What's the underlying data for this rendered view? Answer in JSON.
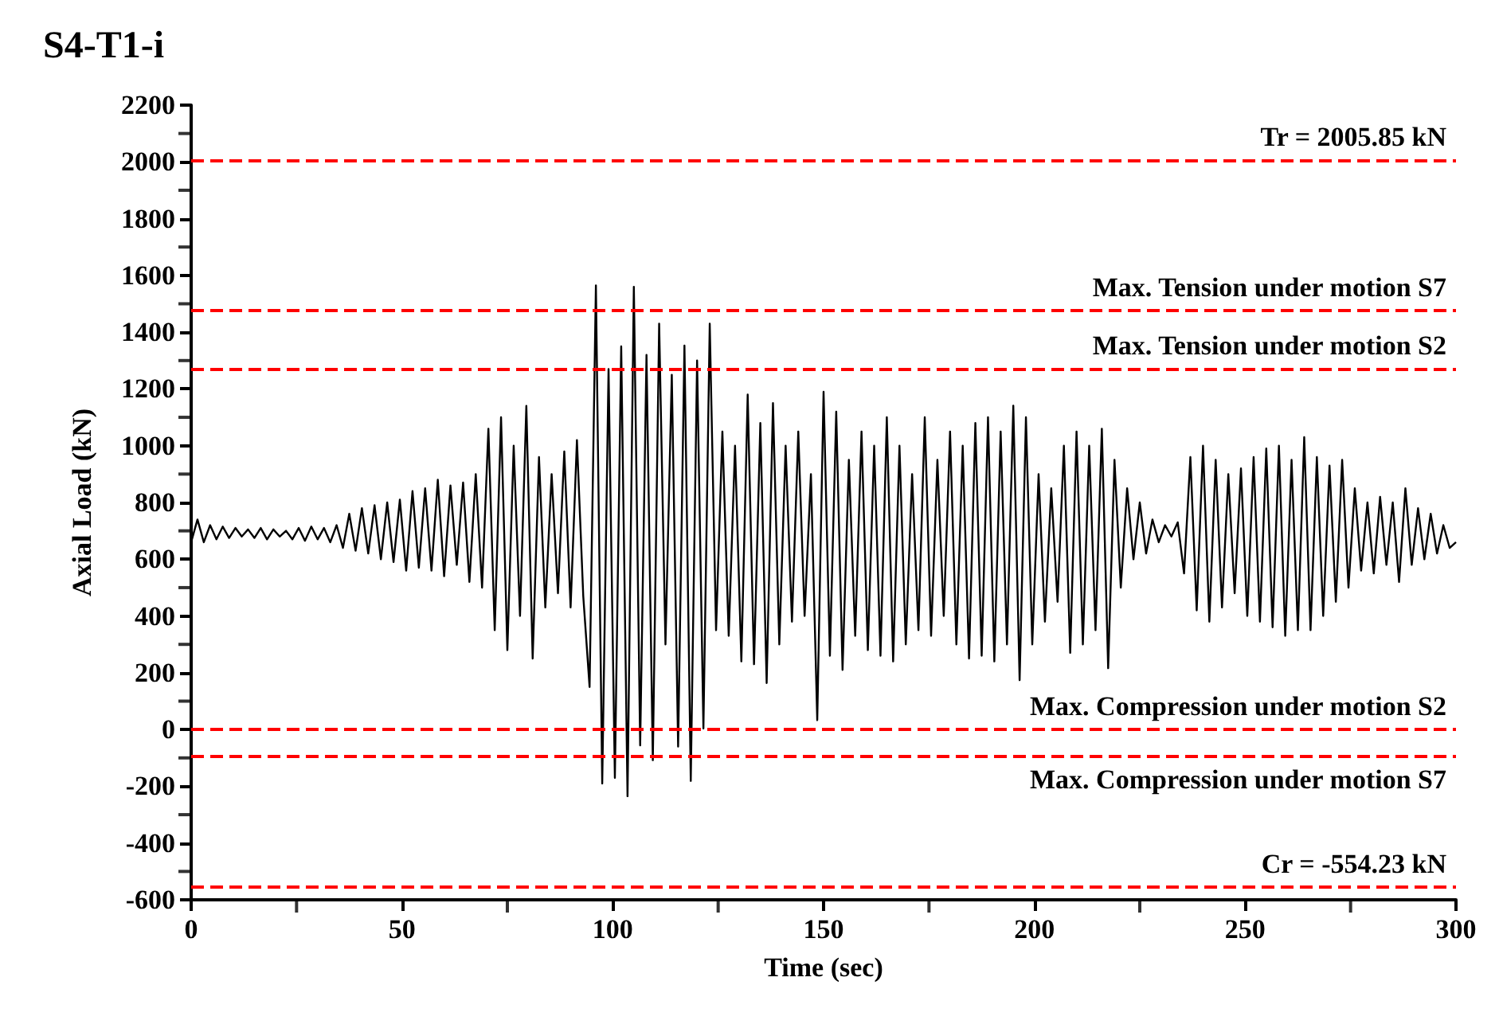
{
  "chart_data": {
    "type": "line",
    "title": "S4-T1-i",
    "xlabel": "Time (sec)",
    "ylabel": "Axial Load (kN)",
    "xlim": [
      0,
      300
    ],
    "xticks": [
      0,
      {
        "value": 25,
        "label": null
      },
      50,
      {
        "value": 75,
        "label": null
      },
      100,
      {
        "value": 125,
        "label": null
      },
      150,
      {
        "value": 175,
        "label": null
      },
      200,
      {
        "value": 225,
        "label": null
      },
      250,
      {
        "value": 275,
        "label": null
      },
      300
    ],
    "ylim": [
      -600,
      2200
    ],
    "yticks": [
      -600,
      {
        "value": -500,
        "label": null
      },
      -400,
      {
        "value": -300,
        "label": null
      },
      -200,
      {
        "value": -100,
        "label": null
      },
      0,
      {
        "value": 100,
        "label": null
      },
      200,
      {
        "value": 300,
        "label": null
      },
      400,
      {
        "value": 500,
        "label": null
      },
      600,
      {
        "value": 700,
        "label": null
      },
      800,
      {
        "value": 900,
        "label": null
      },
      1000,
      {
        "value": 1100,
        "label": null
      },
      1200,
      {
        "value": 1300,
        "label": null
      },
      1400,
      {
        "value": 1500,
        "label": null
      },
      1600,
      {
        "value": 1700,
        "label": null
      },
      1800,
      {
        "value": 1900,
        "label": null
      },
      2000,
      {
        "value": 2100,
        "label": null
      },
      2200
    ],
    "grid": false,
    "marker": "none",
    "line_style": "solid",
    "x": [
      0,
      1.5,
      3,
      4.5,
      6,
      7.5,
      9,
      10.5,
      12,
      13.5,
      15,
      16.5,
      18,
      19.5,
      21,
      22.5,
      24,
      25.5,
      27,
      28.5,
      30,
      31.5,
      33,
      34.5,
      36,
      37.5,
      39,
      40.5,
      42,
      43.5,
      45,
      46.5,
      48,
      49.5,
      51,
      52.5,
      54,
      55.5,
      57,
      58.5,
      60,
      61.5,
      63,
      64.5,
      66,
      67.5,
      69,
      70.5,
      72,
      73.5,
      75,
      76.5,
      78,
      79.5,
      81,
      82.5,
      84,
      85.5,
      87,
      88.5,
      90,
      91.5,
      93,
      94.5,
      96,
      97.5,
      99,
      100.5,
      102,
      103.5,
      105,
      106.5,
      108,
      109.5,
      111,
      112.5,
      114,
      115.5,
      117,
      118.5,
      120,
      121.5,
      123,
      124.5,
      126,
      127.5,
      129,
      130.5,
      132,
      133.5,
      135,
      136.5,
      138,
      139.5,
      141,
      142.5,
      144,
      145.5,
      147,
      148.5,
      150,
      151.5,
      153,
      154.5,
      156,
      157.5,
      159,
      160.5,
      162,
      163.5,
      165,
      166.5,
      168,
      169.5,
      171,
      172.5,
      174,
      175.5,
      177,
      178.5,
      180,
      181.5,
      183,
      184.5,
      186,
      187.5,
      189,
      190.5,
      192,
      193.5,
      195,
      196.5,
      198,
      199.5,
      201,
      202.5,
      204,
      205.5,
      207,
      208.5,
      210,
      211.5,
      213,
      214.5,
      216,
      217.5,
      219,
      220.5,
      222,
      223.5,
      225,
      226.5,
      228,
      229.5,
      231,
      232.5,
      234,
      235.5,
      237,
      238.5,
      240,
      241.5,
      243,
      244.5,
      246,
      247.5,
      249,
      250.5,
      252,
      253.5,
      255,
      256.5,
      258,
      259.5,
      261,
      262.5,
      264,
      265.5,
      267,
      268.5,
      270,
      271.5,
      273,
      274.5,
      276,
      277.5,
      279,
      280.5,
      282,
      283.5,
      285,
      286.5,
      288,
      289.5,
      291,
      292.5,
      294,
      295.5,
      297,
      298.5,
      300
    ],
    "series": [
      {
        "color": "#000000",
        "values": [
          660,
          740,
          660,
          720,
          670,
          715,
          675,
          710,
          680,
          705,
          675,
          710,
          670,
          705,
          680,
          700,
          670,
          710,
          665,
          715,
          670,
          710,
          660,
          720,
          640,
          760,
          630,
          780,
          620,
          790,
          600,
          800,
          590,
          810,
          560,
          840,
          570,
          850,
          560,
          880,
          540,
          860,
          580,
          870,
          520,
          900,
          500,
          1060,
          350,
          1100,
          280,
          1000,
          400,
          1140,
          250,
          960,
          430,
          900,
          480,
          980,
          430,
          1020,
          470,
          150,
          1565,
          -190,
          1270,
          -170,
          1350,
          -235,
          1560,
          -56,
          1320,
          -108,
          1430,
          300,
          1250,
          -60,
          1353,
          -181,
          1300,
          4,
          1430,
          350,
          1050,
          330,
          1000,
          240,
          1180,
          230,
          1080,
          164,
          1150,
          300,
          1000,
          380,
          1050,
          400,
          900,
          33,
          1190,
          260,
          1120,
          210,
          950,
          330,
          1050,
          280,
          1000,
          260,
          1100,
          240,
          1000,
          300,
          900,
          350,
          1100,
          330,
          950,
          400,
          1050,
          300,
          1000,
          250,
          1080,
          260,
          1100,
          240,
          1050,
          300,
          1141,
          174,
          1100,
          300,
          900,
          380,
          850,
          450,
          1000,
          270,
          1050,
          300,
          1000,
          350,
          1060,
          216,
          950,
          500,
          850,
          600,
          800,
          620,
          740,
          660,
          720,
          680,
          730,
          550,
          960,
          420,
          1000,
          380,
          950,
          430,
          900,
          480,
          920,
          400,
          960,
          380,
          990,
          360,
          1000,
          330,
          950,
          350,
          1030,
          350,
          960,
          400,
          930,
          450,
          950,
          500,
          850,
          560,
          800,
          550,
          820,
          580,
          800,
          520,
          850,
          580,
          780,
          600,
          760,
          620,
          720,
          640,
          660
        ]
      }
    ],
    "ref_lines": [
      {
        "axis": "y",
        "value": 2005.85,
        "label": "Tr = 2005.85 kN",
        "color": "#ff0000",
        "line_style": "dashed"
      },
      {
        "axis": "y",
        "value": 1475,
        "label": "Max. Tension under motion S7",
        "color": "#ff0000",
        "line_style": "dashed"
      },
      {
        "axis": "y",
        "value": 1270,
        "label": "Max. Tension under motion S2",
        "color": "#ff0000",
        "line_style": "dashed"
      },
      {
        "axis": "y",
        "value": 0,
        "label": "Max. Compression under motion S2",
        "color": "#ff0000",
        "line_style": "dashed"
      },
      {
        "axis": "y",
        "value": -95,
        "label": "Max. Compression under motion S7",
        "color": "#ff0000",
        "line_style": "dashed"
      },
      {
        "axis": "y",
        "value": -554.23,
        "label": "Cr = -554.23 kN",
        "color": "#ff0000",
        "line_style": "dashed"
      }
    ]
  }
}
